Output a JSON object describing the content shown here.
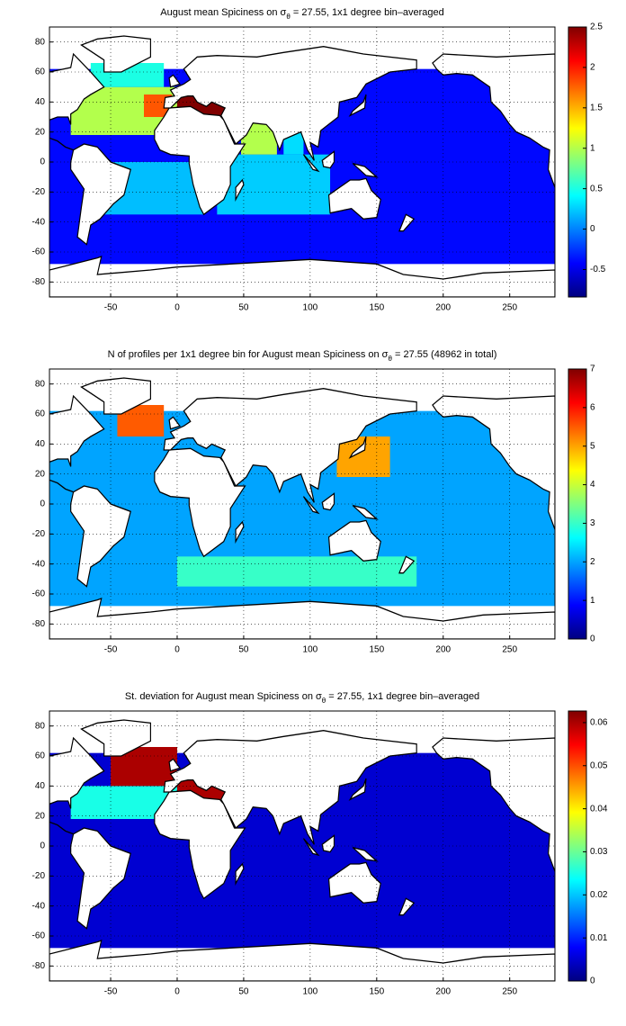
{
  "chart_data": [
    {
      "type": "map",
      "title": "August mean Spiciness on σ",
      "title_subscript": "θ",
      "title_rest": " = 27.55, 1x1 degree bin–averaged",
      "xlim": [
        -96,
        284
      ],
      "ylim": [
        -90,
        90
      ],
      "xticks": [
        -50,
        0,
        50,
        100,
        150,
        200,
        250
      ],
      "yticks": [
        -80,
        -60,
        -40,
        -20,
        0,
        20,
        40,
        60,
        80
      ],
      "grid": true,
      "colormap": "jet",
      "clim": [
        -0.84,
        2.5
      ],
      "cticks": [
        -0.5,
        0,
        0.5,
        1,
        1.5,
        2,
        2.5
      ],
      "cells": [
        {
          "lon": [
            -96,
            284
          ],
          "lat": [
            -68,
            62
          ],
          "value": -0.4
        },
        {
          "lon": [
            -60,
            20
          ],
          "lat": [
            -35,
            0
          ],
          "value": 0.2
        },
        {
          "lon": [
            30,
            115
          ],
          "lat": [
            -35,
            5
          ],
          "value": 0.25
        },
        {
          "lon": [
            -80,
            0
          ],
          "lat": [
            18,
            50
          ],
          "value": 1.0
        },
        {
          "lon": [
            -65,
            -10
          ],
          "lat": [
            50,
            66
          ],
          "value": 0.5
        },
        {
          "lon": [
            -25,
            -4
          ],
          "lat": [
            30,
            45
          ],
          "value": 1.8
        },
        {
          "lon": [
            0,
            36
          ],
          "lat": [
            30,
            45
          ],
          "value": 2.5
        },
        {
          "lon": [
            48,
            75
          ],
          "lat": [
            5,
            26
          ],
          "value": 1.0
        },
        {
          "lon": [
            80,
            95
          ],
          "lat": [
            5,
            20
          ],
          "value": 0.3
        }
      ]
    },
    {
      "type": "map",
      "title": "N of profiles per 1x1 degree bin for August mean Spiciness on σ",
      "title_subscript": "θ",
      "title_rest": " = 27.55 (48962 in total)",
      "xlim": [
        -96,
        284
      ],
      "ylim": [
        -90,
        90
      ],
      "xticks": [
        -50,
        0,
        50,
        100,
        150,
        200,
        250
      ],
      "yticks": [
        -80,
        -60,
        -40,
        -20,
        0,
        20,
        40,
        60,
        80
      ],
      "grid": true,
      "colormap": "jet",
      "clim": [
        0,
        7
      ],
      "cticks": [
        0,
        1,
        2,
        3,
        4,
        5,
        6,
        7
      ],
      "cells": [
        {
          "lon": [
            -96,
            284
          ],
          "lat": [
            -68,
            62
          ],
          "value": 2
        },
        {
          "lon": [
            0,
            180
          ],
          "lat": [
            -55,
            -35
          ],
          "value": 3
        },
        {
          "lon": [
            120,
            160
          ],
          "lat": [
            18,
            45
          ],
          "value": 5
        },
        {
          "lon": [
            -45,
            -10
          ],
          "lat": [
            45,
            66
          ],
          "value": 5.5
        }
      ]
    },
    {
      "type": "map",
      "title": "St. deviation for August mean Spiciness on σ",
      "title_subscript": "θ",
      "title_rest": " = 27.55, 1x1 degree bin–averaged",
      "xlim": [
        -96,
        284
      ],
      "ylim": [
        -90,
        90
      ],
      "xticks": [
        -50,
        0,
        50,
        100,
        150,
        200,
        250
      ],
      "yticks": [
        -80,
        -60,
        -40,
        -20,
        0,
        20,
        40,
        60,
        80
      ],
      "grid": true,
      "colormap": "jet",
      "clim": [
        0,
        0.0627
      ],
      "cticks": [
        0,
        0.01,
        0.02,
        0.03,
        0.04,
        0.05,
        0.06
      ],
      "cells": [
        {
          "lon": [
            -96,
            284
          ],
          "lat": [
            -68,
            62
          ],
          "value": 0.005
        },
        {
          "lon": [
            -80,
            0
          ],
          "lat": [
            18,
            40
          ],
          "value": 0.025
        },
        {
          "lon": [
            -50,
            0
          ],
          "lat": [
            40,
            66
          ],
          "value": 0.06
        },
        {
          "lon": [
            0,
            36
          ],
          "lat": [
            30,
            45
          ],
          "value": 0.06
        }
      ]
    }
  ]
}
